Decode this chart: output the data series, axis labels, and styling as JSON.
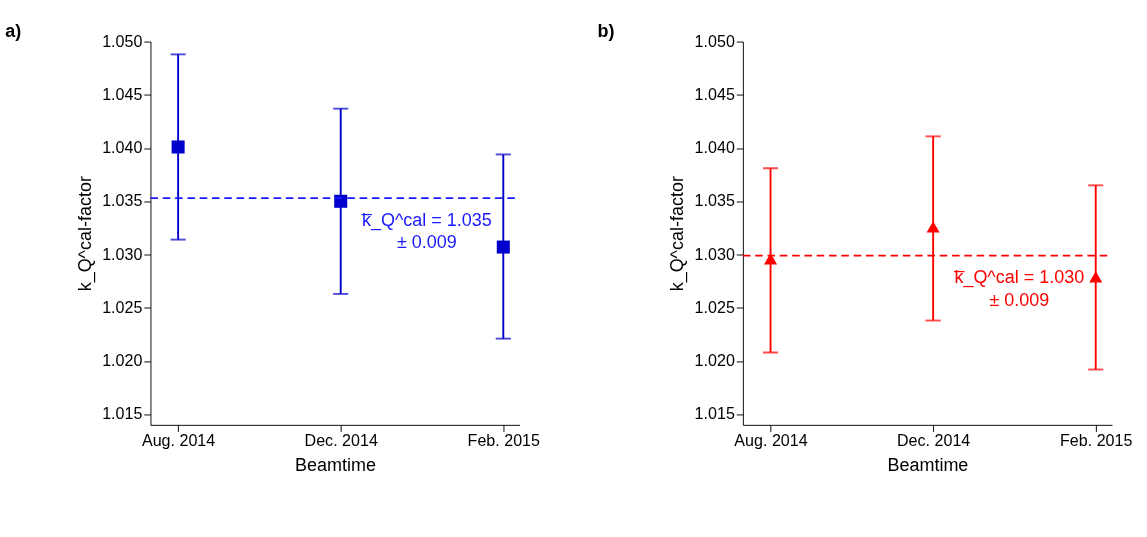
{
  "chart_data": [
    {
      "type": "scatter",
      "title": "a)",
      "xlabel": "Beamtime",
      "ylabel": "k_Q^cal-factor",
      "categories": [
        "Aug. 2014",
        "Dec. 2014",
        "Feb. 2015"
      ],
      "series": [
        {
          "color": "#0000cc",
          "marker": "square",
          "values": [
            1.0401,
            1.035,
            1.0307
          ],
          "errors": [
            [
              1.0314,
              1.0488
            ],
            [
              1.0263,
              1.0437
            ],
            [
              1.0221,
              1.0394
            ]
          ]
        }
      ],
      "ylim": [
        1.014,
        1.05
      ],
      "yticks": [
        1.015,
        {
          "value": 1.02,
          "label": "1.020"
        },
        1.025,
        {
          "value": 1.03,
          "label": "1.030"
        },
        1.035,
        {
          "value": 1.04,
          "label": "1.040"
        },
        1.045,
        {
          "value": 1.05,
          "label": "1.050"
        }
      ],
      "ref_lines": [
        {
          "axis": "y",
          "value": 1.0353,
          "label": "k̅_Q^cal = 1.035\n± 0.009",
          "color": "#1a1aff",
          "line_style": "dashed"
        }
      ],
      "grid": false
    },
    {
      "type": "scatter",
      "title": "b)",
      "xlabel": "Beamtime",
      "ylabel": "k_Q^cal-factor",
      "categories": [
        "Aug. 2014",
        "Dec. 2014",
        "Feb. 2015"
      ],
      "series": [
        {
          "color": "#ff0000",
          "marker": "triangle",
          "values": [
            1.0296,
            1.0326,
            1.0279
          ],
          "errors": [
            [
              1.0208,
              1.0381
            ],
            [
              1.0238,
              1.0411
            ],
            [
              1.0192,
              1.0365
            ]
          ]
        }
      ],
      "ylim": [
        1.014,
        1.05
      ],
      "yticks": [
        1.015,
        {
          "value": 1.02,
          "label": "1.020"
        },
        1.025,
        {
          "value": 1.03,
          "label": "1.030"
        },
        1.035,
        {
          "value": 1.04,
          "label": "1.040"
        },
        1.045,
        {
          "value": 1.05,
          "label": "1.050"
        }
      ],
      "ref_lines": [
        {
          "axis": "y",
          "value": 1.0299,
          "label": "k̅_Q^cal = 1.030\n± 0.009",
          "color": "#ff0000",
          "line_style": "dashed"
        }
      ],
      "grid": false
    }
  ]
}
